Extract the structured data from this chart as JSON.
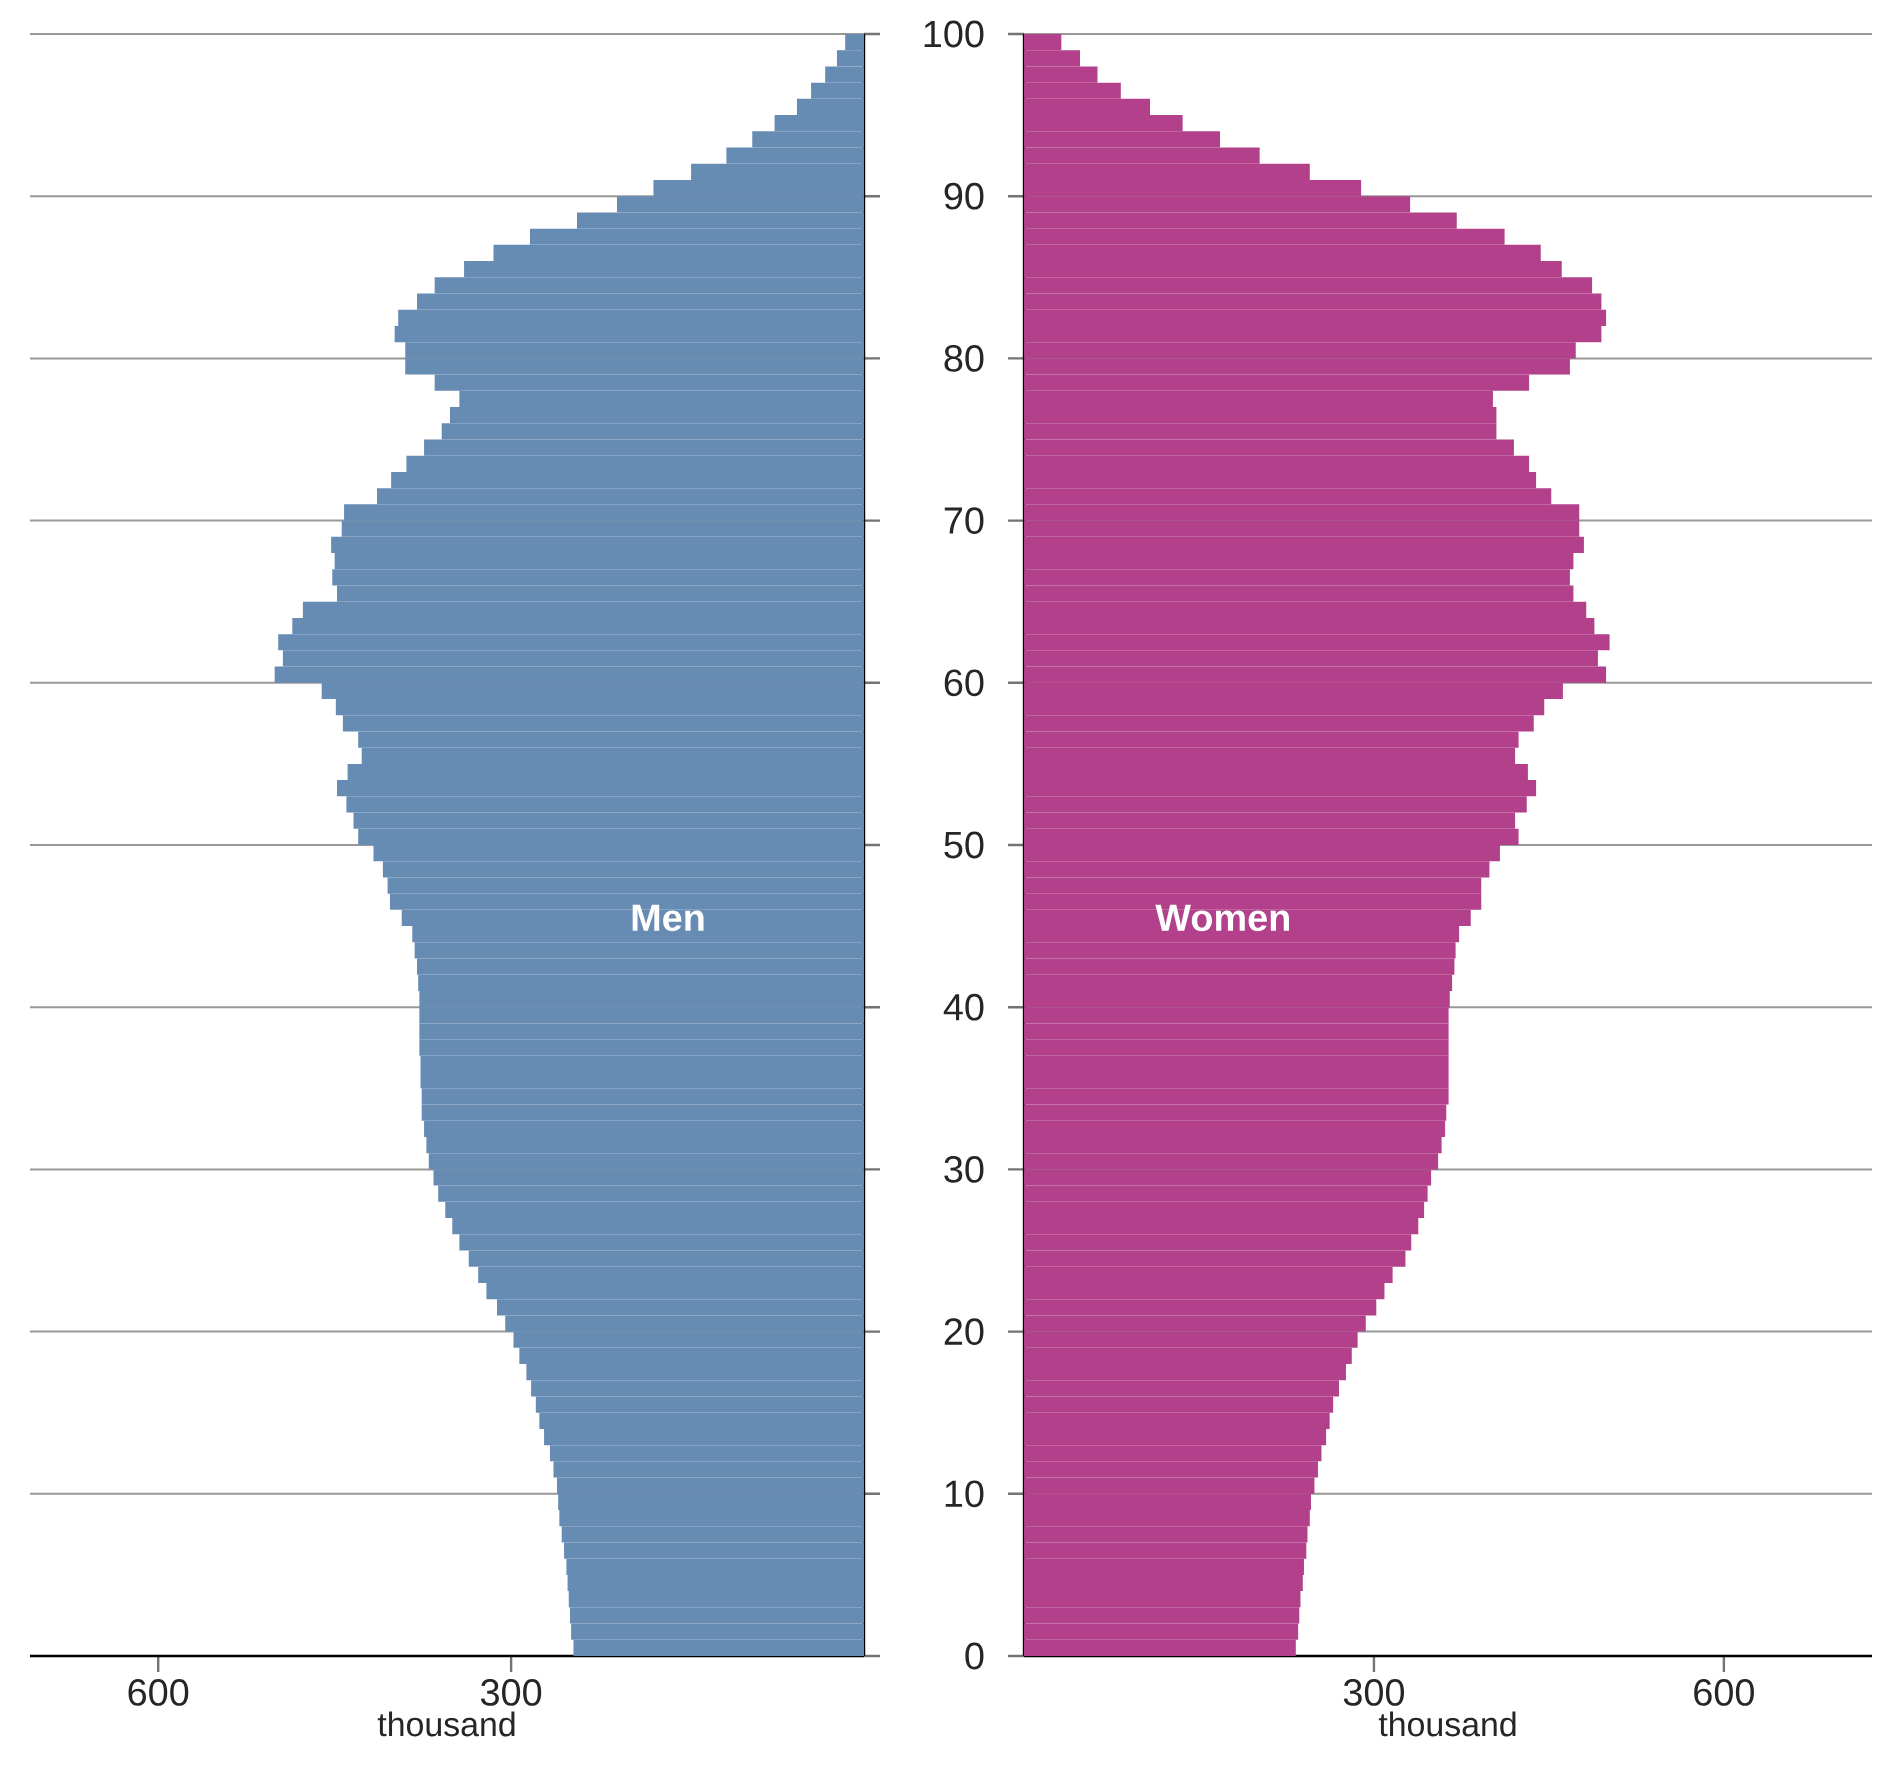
{
  "chart_data": [
    {
      "type": "bar",
      "orientation": "horizontal",
      "xlabel": "thousand",
      "xlim": [
        709,
        0
      ],
      "xticks": [
        600,
        300
      ],
      "ylim": [
        0,
        100
      ],
      "yticks": [
        0,
        10,
        20,
        30,
        40,
        50,
        60,
        70,
        80,
        90,
        100
      ],
      "grid": "y",
      "tick_labels": "x",
      "x": [
        0.5,
        1.5,
        2.5,
        3.5,
        4.5,
        5.5,
        6.5,
        7.5,
        8.5,
        9.5,
        10.5,
        11.5,
        12.5,
        13.5,
        14.5,
        15.5,
        16.5,
        17.5,
        18.5,
        19.5,
        20.5,
        21.5,
        22.5,
        23.5,
        24.5,
        25.5,
        26.5,
        27.5,
        28.5,
        29.5,
        30.5,
        31.5,
        32.5,
        33.5,
        34.5,
        35.5,
        36.5,
        37.5,
        38.5,
        39.5,
        40.5,
        41.5,
        42.5,
        43.5,
        44.5,
        45.5,
        46.5,
        47.5,
        48.5,
        49.5,
        50.5,
        51.5,
        52.5,
        53.5,
        54.5,
        55.5,
        56.5,
        57.5,
        58.5,
        59.5,
        60.5,
        61.5,
        62.5,
        63.5,
        64.5,
        65.5,
        66.5,
        67.5,
        68.5,
        69.5,
        70.5,
        71.5,
        72.5,
        73.5,
        74.5,
        75.5,
        76.5,
        77.5,
        78.5,
        79.5,
        80.5,
        81.5,
        82.5,
        83.5,
        84.5,
        85.5,
        86.5,
        87.5,
        88.5,
        89.5,
        90.5,
        91.5,
        92.5,
        93.5,
        94.5,
        95.5,
        96.5,
        97.5,
        98.5,
        99.5
      ],
      "series": [
        {
          "name": "Men",
          "color": "#678cb4",
          "values": [
            247,
            249,
            250,
            251,
            252,
            253,
            255,
            257,
            259,
            260,
            261,
            264,
            267,
            272,
            276,
            279,
            283,
            287,
            293,
            298,
            305,
            312,
            321,
            328,
            336,
            344,
            350,
            356,
            362,
            366,
            370,
            372,
            374,
            376,
            376,
            377,
            377,
            378,
            378,
            378,
            378,
            379,
            380,
            382,
            384,
            393,
            403,
            405,
            409,
            417,
            430,
            434,
            440,
            448,
            439,
            427,
            430,
            443,
            449,
            461,
            501,
            494,
            498,
            486,
            477,
            448,
            452,
            450,
            453,
            444,
            442,
            414,
            402,
            389,
            374,
            359,
            352,
            344,
            365,
            390,
            390,
            399,
            396,
            380,
            365,
            340,
            315,
            284,
            244,
            210,
            179,
            147,
            117,
            95,
            76,
            57,
            45,
            33,
            23,
            16
          ]
        }
      ]
    },
    {
      "type": "bar",
      "orientation": "horizontal",
      "xlabel": "thousand",
      "xlim": [
        0,
        727
      ],
      "xticks": [
        300,
        600
      ],
      "ylim": [
        0,
        100
      ],
      "yticks": [
        0,
        10,
        20,
        30,
        40,
        50,
        60,
        70,
        80,
        90,
        100
      ],
      "grid": "y",
      "x": [
        0.5,
        1.5,
        2.5,
        3.5,
        4.5,
        5.5,
        6.5,
        7.5,
        8.5,
        9.5,
        10.5,
        11.5,
        12.5,
        13.5,
        14.5,
        15.5,
        16.5,
        17.5,
        18.5,
        19.5,
        20.5,
        21.5,
        22.5,
        23.5,
        24.5,
        25.5,
        26.5,
        27.5,
        28.5,
        29.5,
        30.5,
        31.5,
        32.5,
        33.5,
        34.5,
        35.5,
        36.5,
        37.5,
        38.5,
        39.5,
        40.5,
        41.5,
        42.5,
        43.5,
        44.5,
        45.5,
        46.5,
        47.5,
        48.5,
        49.5,
        50.5,
        51.5,
        52.5,
        53.5,
        54.5,
        55.5,
        56.5,
        57.5,
        58.5,
        59.5,
        60.5,
        61.5,
        62.5,
        63.5,
        64.5,
        65.5,
        66.5,
        67.5,
        68.5,
        69.5,
        70.5,
        71.5,
        72.5,
        73.5,
        74.5,
        75.5,
        76.5,
        77.5,
        78.5,
        79.5,
        80.5,
        81.5,
        82.5,
        83.5,
        84.5,
        85.5,
        86.5,
        87.5,
        88.5,
        89.5,
        90.5,
        91.5,
        92.5,
        93.5,
        94.5,
        95.5,
        96.5,
        97.5,
        98.5,
        99.5
      ],
      "series": [
        {
          "name": "Women",
          "color": "#b2408a",
          "values": [
            233,
            235,
            236,
            237,
            239,
            240,
            242,
            243,
            245,
            246,
            249,
            252,
            255,
            259,
            262,
            265,
            270,
            276,
            281,
            286,
            293,
            302,
            309,
            316,
            327,
            332,
            338,
            343,
            346,
            349,
            355,
            358,
            361,
            362,
            364,
            364,
            364,
            364,
            364,
            364,
            365,
            367,
            369,
            370,
            373,
            383,
            392,
            392,
            399,
            408,
            424,
            421,
            431,
            439,
            432,
            421,
            424,
            437,
            446,
            462,
            499,
            492,
            502,
            489,
            482,
            471,
            468,
            471,
            480,
            476,
            476,
            452,
            439,
            433,
            420,
            405,
            405,
            402,
            433,
            468,
            473,
            495,
            499,
            495,
            487,
            461,
            443,
            412,
            371,
            331,
            289,
            245,
            202,
            168,
            136,
            108,
            83,
            63,
            48,
            32
          ]
        }
      ]
    }
  ]
}
